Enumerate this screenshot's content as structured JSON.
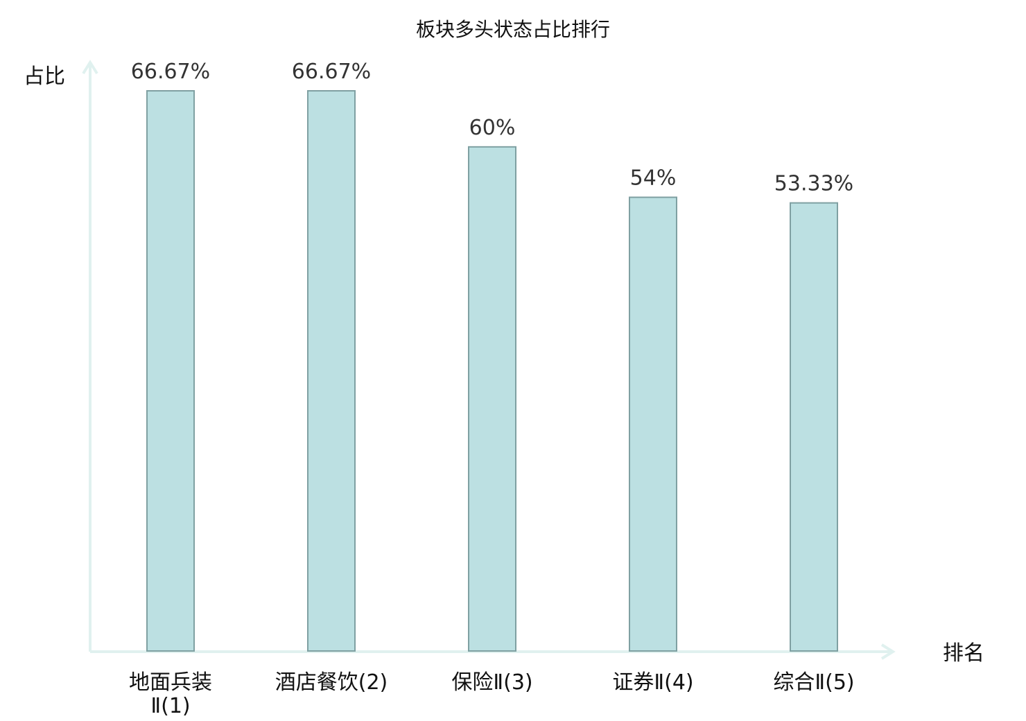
{
  "chart_data": {
    "type": "bar",
    "title": "板块多头状态占比排行",
    "ylabel": "占比",
    "xlabel": "排名",
    "categories": [
      [
        "地面兵装",
        "Ⅱ(1)"
      ],
      [
        "酒店餐饮(2)"
      ],
      [
        "保险Ⅱ(3)"
      ],
      [
        "证券Ⅱ(4)"
      ],
      [
        "综合Ⅱ(5)"
      ]
    ],
    "values": [
      66.67,
      66.67,
      60,
      54,
      53.33
    ],
    "value_labels": [
      "66.67%",
      "66.67%",
      "60%",
      "54%",
      "53.33%"
    ],
    "highlight_index": 2,
    "ylim": [
      0,
      66.67
    ],
    "grid": false,
    "colors": {
      "bar_fill": "#bce0e2",
      "bar_stroke": "#7fa0a2",
      "axis": "#e0f1ef",
      "highlight_label": "#e00000",
      "text": "#111111"
    }
  }
}
